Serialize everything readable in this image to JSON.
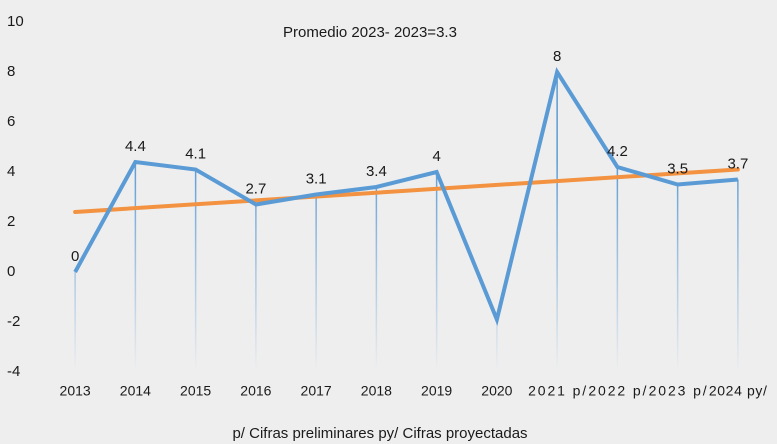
{
  "chart_data": {
    "type": "line",
    "annotation": "Promedio 2023- 2023=3.3",
    "footnote": "p/  Cifras preliminares      py/ Cifras proyectadas",
    "categories": [
      "2013",
      "2014",
      "2015",
      "2016",
      "2017",
      "2018",
      "2019",
      "2020",
      "2021 p/",
      "2022 p/",
      "2023 p/",
      "2024 py/"
    ],
    "series": [
      {
        "color": "#5b9bd5",
        "values": [
          0,
          4.4,
          4.1,
          2.7,
          3.1,
          3.4,
          4,
          -1.9,
          8,
          4.2,
          3.5,
          3.7
        ],
        "value_labels": [
          "0",
          "4.4",
          "4.1",
          "2.7",
          "3.1",
          "3.4",
          "4",
          null,
          "8",
          "4.2",
          "3.5",
          "3.7"
        ]
      }
    ],
    "trend": {
      "color": "#f39240",
      "values": [
        2.4,
        4.1
      ]
    },
    "ylim": [
      -4,
      10
    ],
    "yticks": [
      -4,
      -2,
      0,
      2,
      4,
      6,
      8,
      10
    ]
  }
}
